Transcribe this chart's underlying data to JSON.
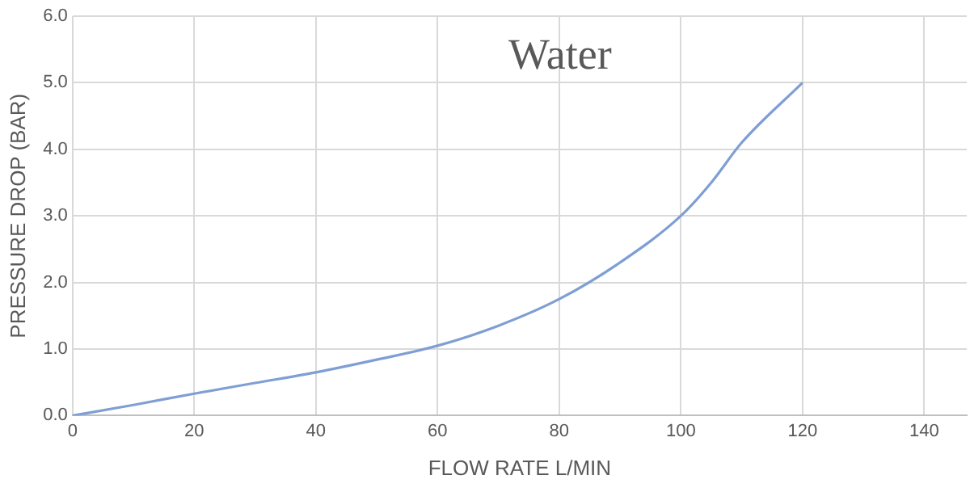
{
  "chart_data": {
    "type": "line",
    "title": "Water",
    "xlabel": "FLOW RATE L/MIN",
    "ylabel": "PRESSURE DROP (BAR)",
    "x": [
      0,
      10,
      20,
      30,
      40,
      50,
      60,
      70,
      80,
      90,
      100,
      105,
      110,
      120
    ],
    "series": [
      {
        "color": "#7f9fd4",
        "values": [
          0,
          0.16,
          0.33,
          0.49,
          0.65,
          0.84,
          1.05,
          1.35,
          1.75,
          2.3,
          3.0,
          3.5,
          4.1,
          5.0
        ]
      }
    ],
    "xlim": [
      0,
      147
    ],
    "xticks": [
      0,
      20,
      40,
      60,
      80,
      100,
      120,
      140
    ],
    "ylim": [
      0,
      6
    ],
    "yticks": [
      {
        "value": 0,
        "label": "0.0"
      },
      {
        "value": 1,
        "label": "1.0"
      },
      {
        "value": 2,
        "label": "2.0"
      },
      {
        "value": 3,
        "label": "3.0"
      },
      {
        "value": 4,
        "label": "4.0"
      },
      {
        "value": 5,
        "label": "5.0"
      },
      {
        "value": 6,
        "label": "6.0"
      }
    ],
    "grid": true,
    "legend": false,
    "marker": "none",
    "line_style": "solid"
  }
}
